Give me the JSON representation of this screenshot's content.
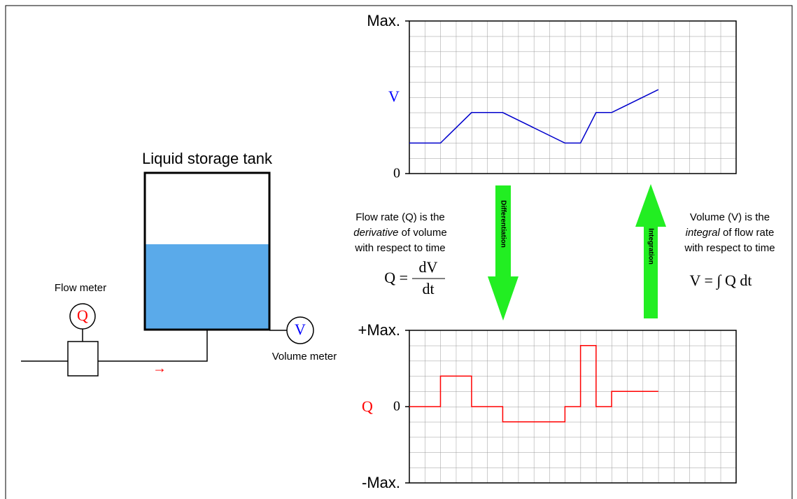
{
  "tank": {
    "title": "Liquid storage tank"
  },
  "flow_meter": {
    "label": "Flow meter",
    "symbol": "Q"
  },
  "volume_meter": {
    "label": "Volume meter",
    "symbol": "V"
  },
  "flow_arrow": "→",
  "differentiation": {
    "arrow_label": "Differentiation",
    "note": {
      "line1": "Flow rate (Q) is the",
      "line2_italic": "derivative",
      "line2_rest": " of volume",
      "line3": "with respect to time"
    },
    "formula": {
      "lhs": "Q =",
      "numerator": "dV",
      "denominator": "dt"
    }
  },
  "integration": {
    "arrow_label": "Integration",
    "note": {
      "line1": "Volume (V) is the",
      "line2_italic": "integral",
      "line2_rest": " of flow rate",
      "line3": "with respect to time"
    },
    "formula": "V = ∫ Q dt"
  },
  "chart_data": [
    {
      "type": "line",
      "ylabel": "V",
      "ylabel_color": "#0000ff",
      "xlim": [
        0,
        21
      ],
      "ylim": [
        0,
        10
      ],
      "yticks": [
        0,
        {
          "value": 10,
          "label": "Max."
        }
      ],
      "series": [
        {
          "color": "#0000cc",
          "x": [
            0,
            2,
            4,
            6,
            10,
            11,
            12,
            13,
            16
          ],
          "values": [
            2,
            2,
            4,
            4,
            2,
            2,
            4,
            4,
            5.5
          ]
        }
      ]
    },
    {
      "type": "line",
      "ylabel": "Q",
      "ylabel_color": "#ff0000",
      "xlim": [
        0,
        21
      ],
      "ylim": [
        -5,
        5
      ],
      "yticks": [
        {
          "value": -5,
          "label": "-Max."
        },
        0,
        {
          "value": 5,
          "label": "+Max."
        }
      ],
      "series": [
        {
          "color": "#ff0000",
          "x": [
            0,
            2,
            2,
            4,
            4,
            6,
            6,
            10,
            10,
            11,
            11,
            12,
            12,
            13,
            13,
            16
          ],
          "values": [
            0,
            0,
            2,
            2,
            0,
            0,
            -1,
            -1,
            0,
            0,
            4,
            4,
            0,
            0,
            1,
            1
          ]
        }
      ]
    }
  ]
}
